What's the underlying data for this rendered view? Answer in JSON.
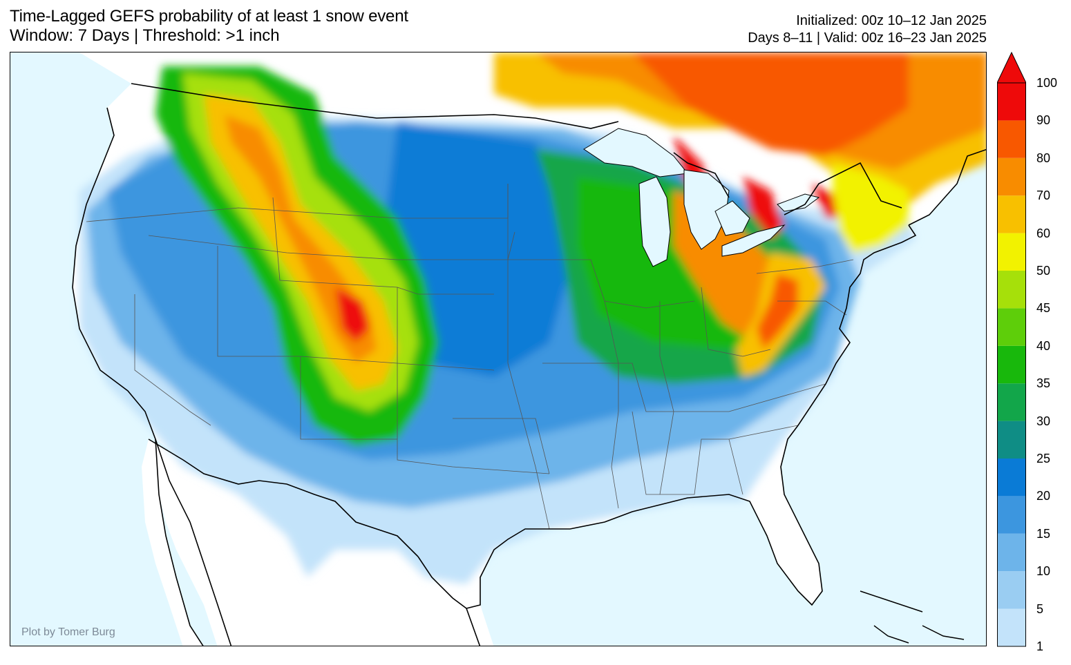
{
  "header": {
    "title": "Time-Lagged GEFS probability of at least 1 snow event",
    "subtitle": "Window: 7 Days | Threshold: >1 inch",
    "initialized": "Initialized: 00z 10–12 Jan 2025",
    "valid": "Days 8–11 | Valid: 00z 16–23 Jan 2025"
  },
  "credit": "Plot by Tomer Burg",
  "colors": {
    "ocean": "#e3f8ff",
    "land_zero": "#ffffff"
  },
  "colorbar": {
    "levels": [
      1,
      5,
      10,
      15,
      20,
      25,
      30,
      35,
      40,
      45,
      50,
      60,
      70,
      80,
      90,
      100
    ],
    "tick_labels": [
      "1",
      "5",
      "10",
      "15",
      "20",
      "25",
      "30",
      "35",
      "40",
      "45",
      "50",
      "60",
      "70",
      "80",
      "90",
      "100"
    ],
    "colors": [
      "#c3e3fa",
      "#9acdf2",
      "#6db4ea",
      "#3c96df",
      "#0a7bd6",
      "#0f8d85",
      "#12a64a",
      "#18b80c",
      "#5ece0a",
      "#a6e00a",
      "#f2f200",
      "#f8c000",
      "#f88c00",
      "#f85800",
      "#ee0a0a"
    ],
    "extend": "max"
  },
  "map": {
    "region": "Contiguous United States",
    "projection": "Lambert Conformal"
  }
}
